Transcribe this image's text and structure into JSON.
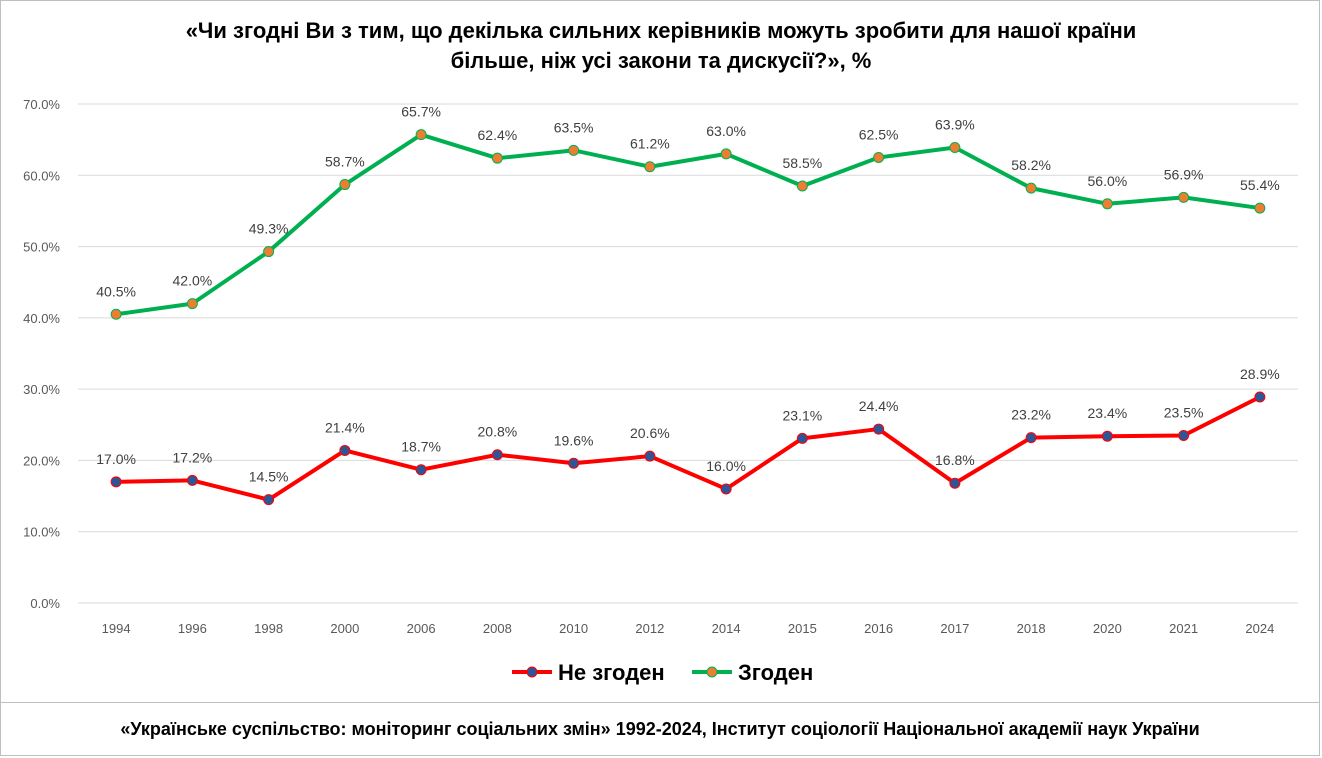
{
  "title": {
    "line1": "«Чи згодні Ви з тим, що декілька сильних керівників можуть зробити для нашої країни",
    "line2": "більше, ніж усі закони та дискусії?», %"
  },
  "footer": "«Українське суспільство: моніторинг соціальних змін» 1992-2024, Інститут соціології Національної академії наук України",
  "colors": {
    "disagree": "#ff0000",
    "agree": "#00b050",
    "marker_disagree": "#2e5597",
    "marker_agree": "#ed7d31",
    "grid": "#d9d9d9"
  },
  "chart_data": {
    "type": "line",
    "categories": [
      "1994",
      "1996",
      "1998",
      "2000",
      "2006",
      "2008",
      "2010",
      "2012",
      "2014",
      "2015",
      "2016",
      "2017",
      "2018",
      "2020",
      "2021",
      "2024"
    ],
    "series": [
      {
        "name": "Не згоден",
        "values": [
          17.0,
          17.2,
          14.5,
          21.4,
          18.7,
          20.8,
          19.6,
          20.6,
          16.0,
          23.1,
          24.4,
          16.8,
          23.2,
          23.4,
          23.5,
          28.9
        ],
        "labels": [
          "17.0%",
          "17.2%",
          "14.5%",
          "21.4%",
          "18.7%",
          "20.8%",
          "19.6%",
          "20.6%",
          "16.0%",
          "23.1%",
          "24.4%",
          "16.8%",
          "23.2%",
          "23.4%",
          "23.5%",
          "28.9%"
        ]
      },
      {
        "name": "Згоден",
        "values": [
          40.5,
          42.0,
          49.3,
          58.7,
          65.7,
          62.4,
          63.5,
          61.2,
          63.0,
          58.5,
          62.5,
          63.9,
          58.2,
          56.0,
          56.9,
          55.4
        ],
        "labels": [
          "40.5%",
          "42.0%",
          "49.3%",
          "58.7%",
          "65.7%",
          "62.4%",
          "63.5%",
          "61.2%",
          "63.0%",
          "58.5%",
          "62.5%",
          "63.9%",
          "58.2%",
          "56.0%",
          "56.9%",
          "55.4%"
        ]
      }
    ],
    "ylim": [
      0,
      70
    ],
    "yticks": [
      0,
      10,
      20,
      30,
      40,
      50,
      60,
      70
    ],
    "ytick_labels": [
      "0.0%",
      "10.0%",
      "20.0%",
      "30.0%",
      "40.0%",
      "50.0%",
      "60.0%",
      "70.0%"
    ],
    "grid": true,
    "legend": "bottom",
    "xlabel": "",
    "ylabel": ""
  }
}
